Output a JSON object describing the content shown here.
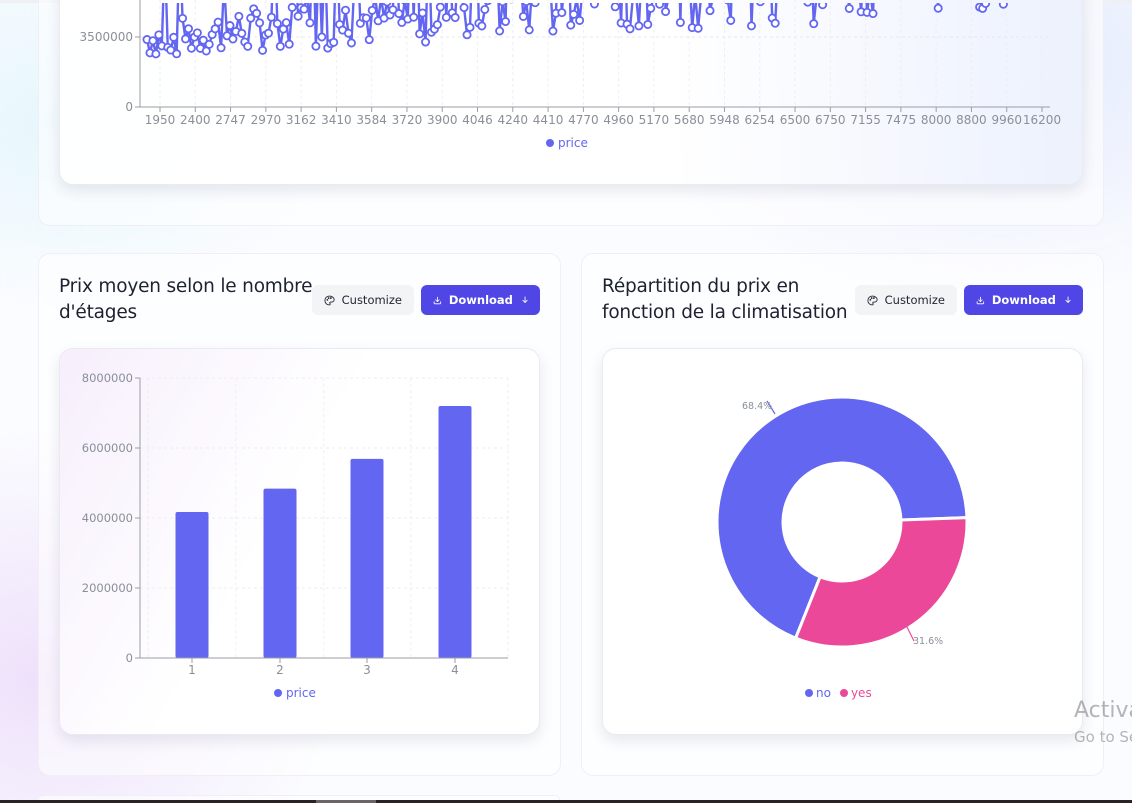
{
  "theme": {
    "accent": "#6366f1",
    "button_primary": "#4f46e5",
    "pie_yes": "#ec4899",
    "axis_text": "#8a8f98"
  },
  "cards": {
    "price_trend": {
      "legend_label": "price"
    },
    "floors": {
      "title_line1": "Prix moyen selon le nombre",
      "title_line2": "d'étages",
      "customize_label": "Customize",
      "download_label": "Download",
      "legend_label": "price"
    },
    "aircon": {
      "title_line1": "Répartition du prix en",
      "title_line2": "fonction de la climatisation",
      "customize_label": "Customize",
      "download_label": "Download",
      "legend_no": "no",
      "legend_yes": "yes"
    }
  },
  "icons": {
    "customize": "palette-icon",
    "download": "download-icon",
    "caret": "arrow-down-icon"
  },
  "watermark": {
    "line1": "Activate Windows",
    "line2": "Go to Settings to activate Windows."
  },
  "chart_data": [
    {
      "type": "line",
      "title": "",
      "xlabel": "",
      "ylabel": "",
      "series_name": "price",
      "x_tick_labels": [
        "1950",
        "2400",
        "2747",
        "2970",
        "3162",
        "3410",
        "3584",
        "3720",
        "3900",
        "4046",
        "4240",
        "4410",
        "4770",
        "4960",
        "5170",
        "5680",
        "5948",
        "6254",
        "6500",
        "6750",
        "7155",
        "7475",
        "8000",
        "8800",
        "9960",
        "16200"
      ],
      "y_ticks_visible": [
        0,
        3500000
      ],
      "y_ticks_visible_labels": [
        "0",
        "3500000"
      ],
      "notes": "Plot area top is scrolled out of view; values oscillate mostly between ~2,300,000 and above the visible top, trending upward with x (lot area).",
      "legend": [
        "price"
      ],
      "grid": true
    },
    {
      "type": "bar",
      "title": "Prix moyen selon le nombre d'étages",
      "categories": [
        "1",
        "2",
        "3",
        "4"
      ],
      "values": [
        4170000,
        4840000,
        5690000,
        7200000
      ],
      "series_name": "price",
      "xlabel": "",
      "ylabel": "",
      "ylim": [
        0,
        8000000
      ],
      "y_ticks": [
        0,
        2000000,
        4000000,
        6000000,
        8000000
      ],
      "y_tick_labels": [
        "0",
        "2000000",
        "4000000",
        "6000000",
        "8000000"
      ],
      "legend": [
        "price"
      ],
      "grid": true
    },
    {
      "type": "pie",
      "title": "Répartition du prix en fonction de la climatisation",
      "donut": true,
      "categories": [
        "no",
        "yes"
      ],
      "values": [
        68.4,
        31.6
      ],
      "labels": [
        "68.4%",
        "31.6%"
      ],
      "colors": [
        "#6366f1",
        "#ec4899"
      ],
      "legend": [
        "no",
        "yes"
      ]
    }
  ]
}
